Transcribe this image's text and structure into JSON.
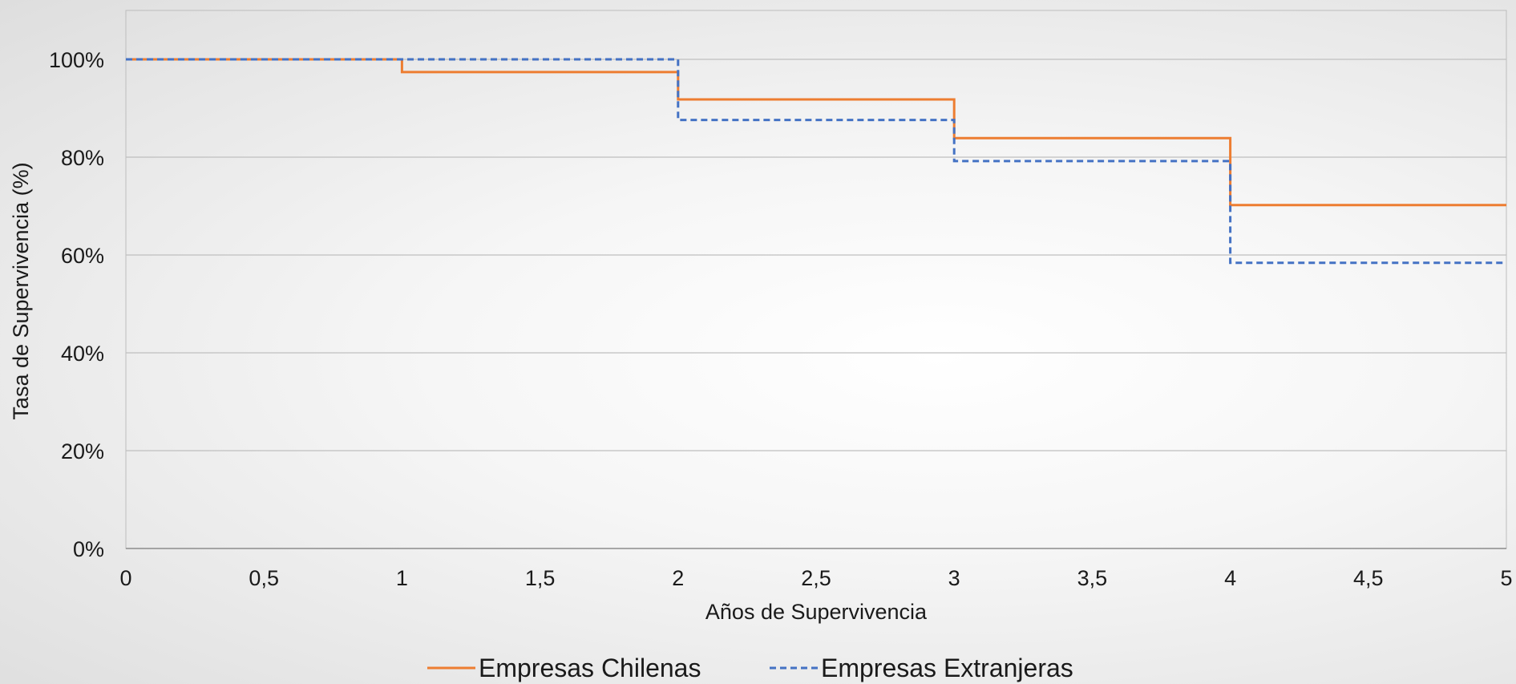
{
  "chart_data": {
    "type": "line",
    "step": true,
    "title": "",
    "xlabel": "Años de Supervivencia",
    "ylabel": "Tasa de Supervivencia (%)",
    "xlim": [
      0,
      5
    ],
    "ylim": [
      0,
      1.1
    ],
    "x_ticks": [
      0,
      0.5,
      1,
      1.5,
      2,
      2.5,
      3,
      3.5,
      4,
      4.5,
      5
    ],
    "x_tick_labels": [
      "0",
      "0,5",
      "1",
      "1,5",
      "2",
      "2,5",
      "3",
      "3,5",
      "4",
      "4,5",
      "5"
    ],
    "y_ticks": [
      0,
      0.2,
      0.4,
      0.6,
      0.8,
      1.0
    ],
    "y_tick_labels": [
      "0%",
      "20%",
      "40%",
      "60%",
      "80%",
      "100%"
    ],
    "grid": "horizontal",
    "legend_position": "bottom",
    "series": [
      {
        "name": "Empresas Chilenas",
        "color": "#ED7D31",
        "dash": "solid",
        "x": [
          0,
          1,
          2,
          3,
          4,
          5
        ],
        "values": [
          1.0,
          0.974,
          0.918,
          0.839,
          0.702,
          0.702
        ]
      },
      {
        "name": "Empresas Extranjeras",
        "color": "#4472C4",
        "dash": "dashed",
        "x": [
          0,
          1,
          2,
          3,
          4,
          5
        ],
        "values": [
          1.0,
          1.0,
          0.876,
          0.792,
          0.584,
          0.584
        ]
      }
    ]
  }
}
